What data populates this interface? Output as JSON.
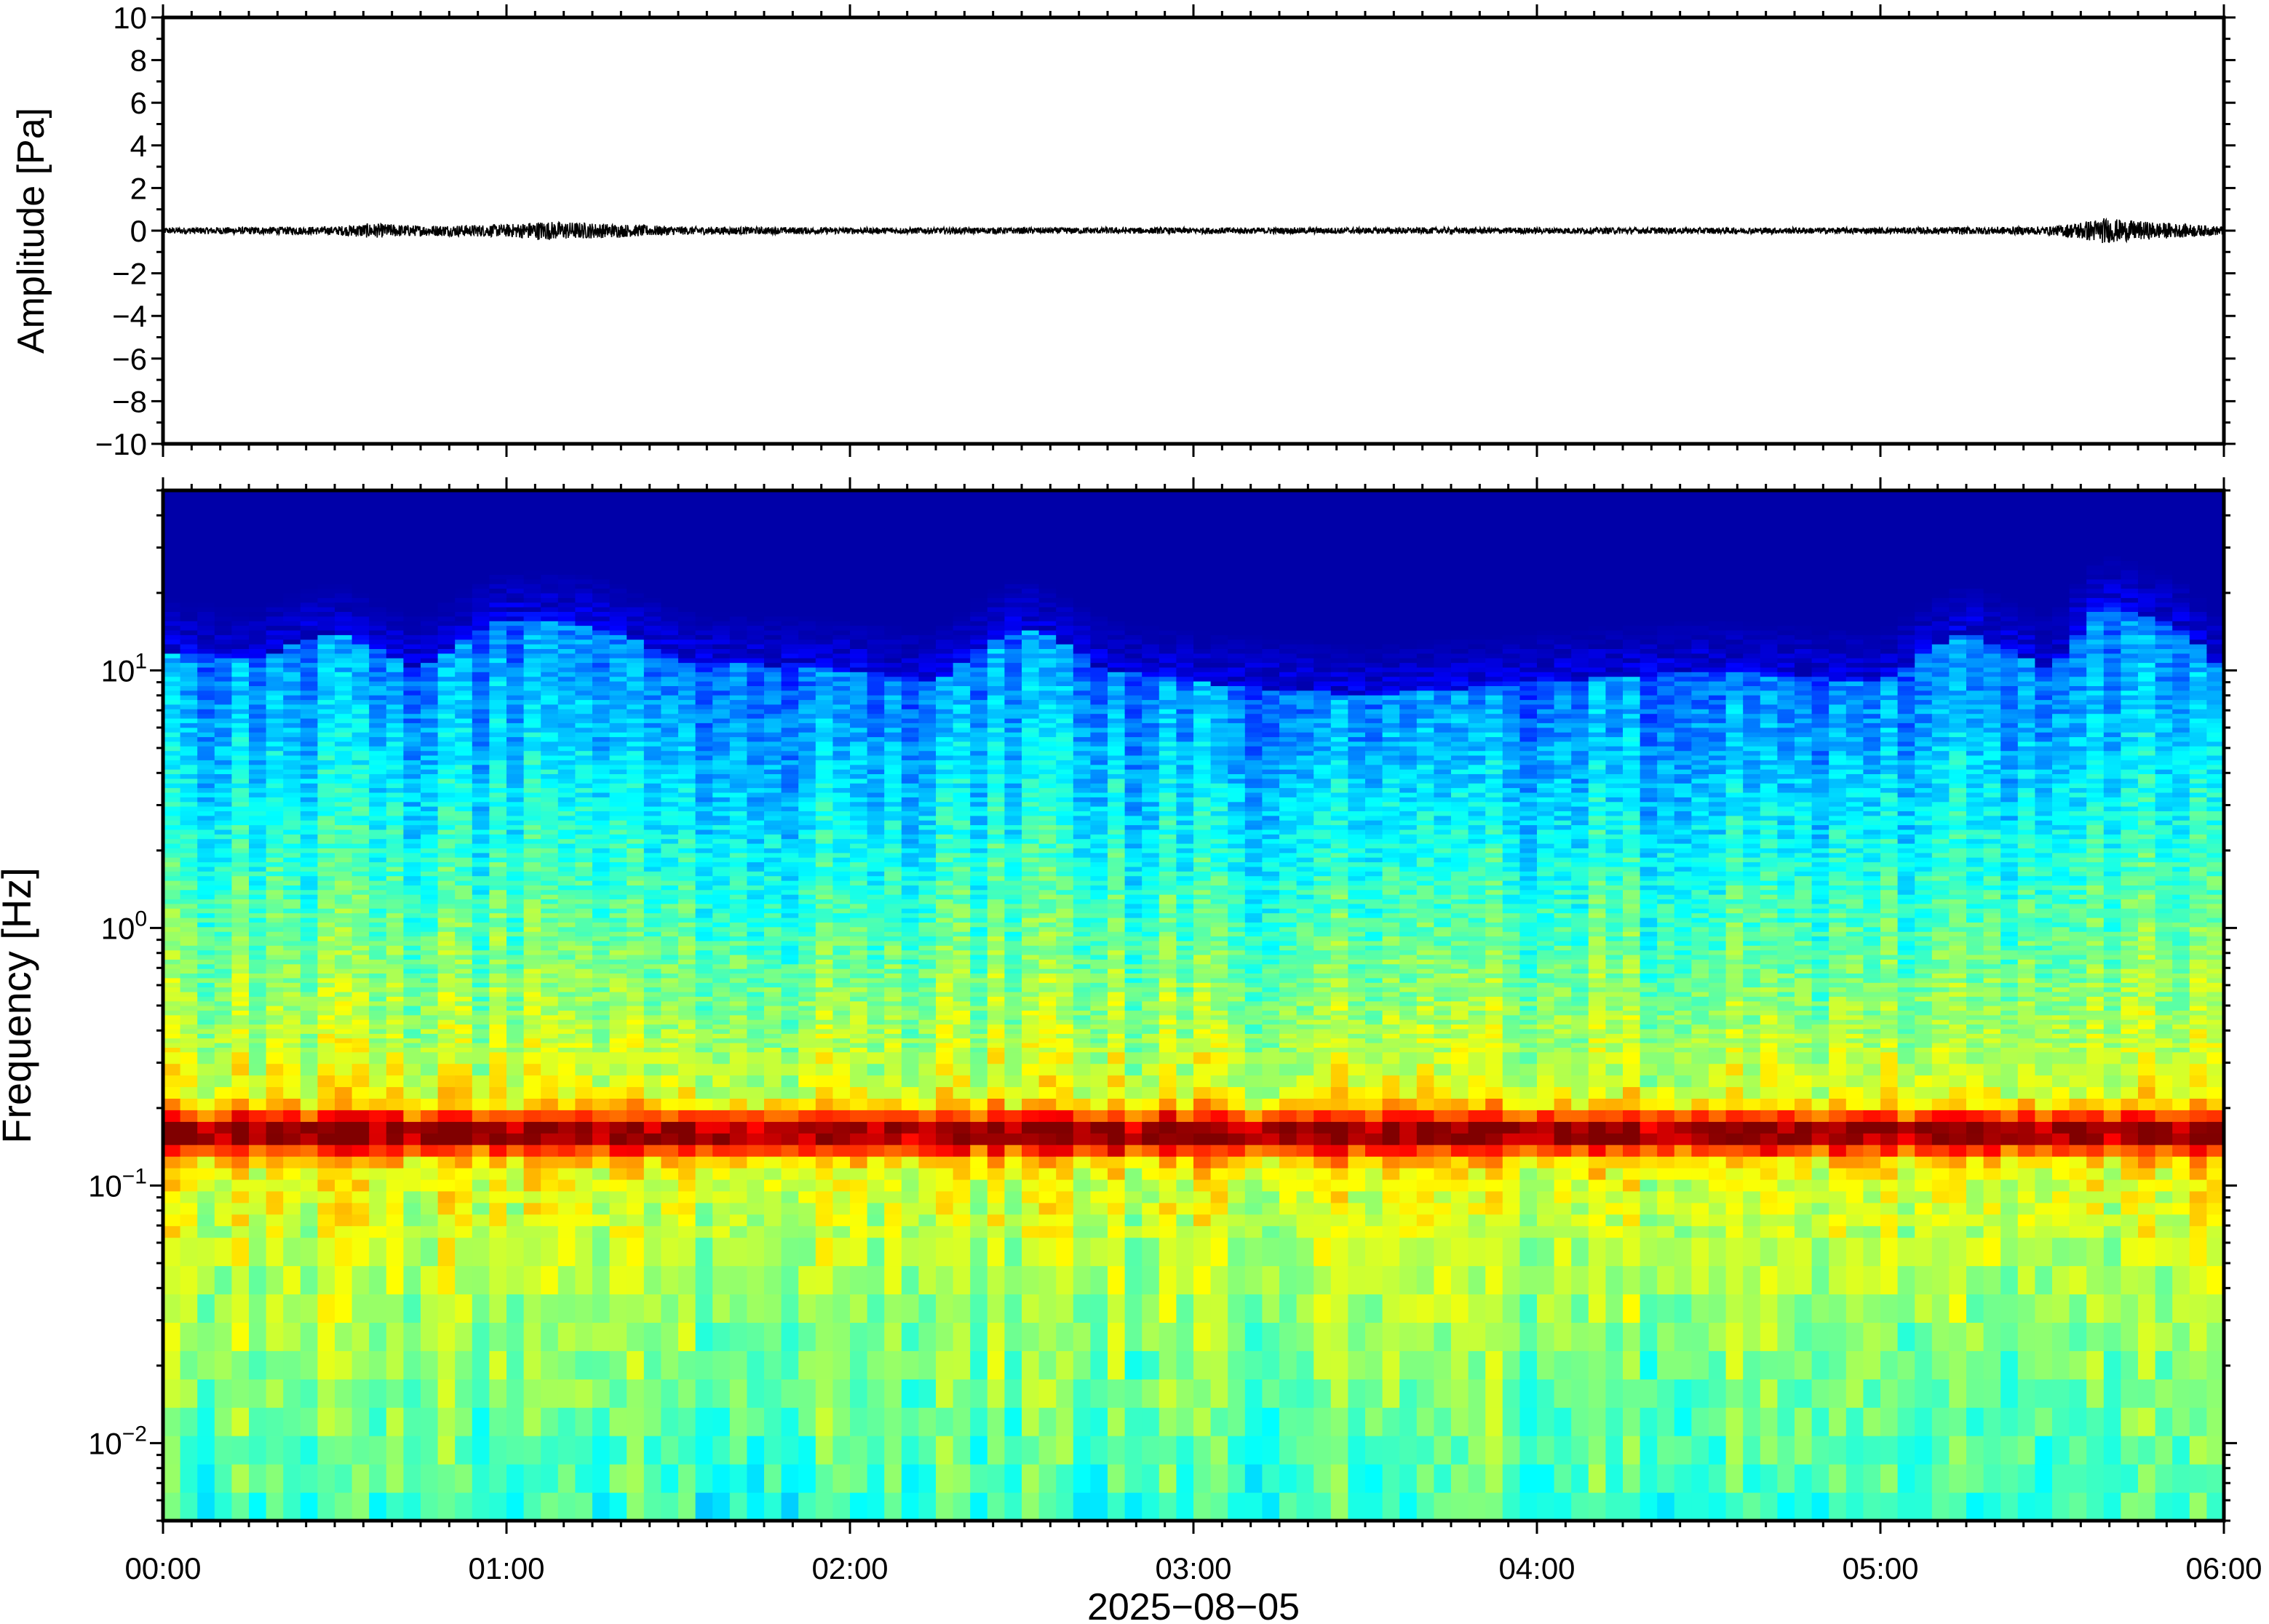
{
  "chart_data": [
    {
      "type": "line",
      "ylabel": "Amplitude [Pa]",
      "ylim": [
        -10,
        10
      ],
      "yticks": [
        "10",
        "8",
        "6",
        "4",
        "2",
        "0",
        "−2",
        "−4",
        "−6",
        "−8",
        "−10"
      ],
      "xlim": [
        "00:00",
        "06:00"
      ],
      "grid": false,
      "series": [
        {
          "color": "#000000",
          "x_hours": [
            0.0,
            0.5,
            0.6,
            0.75,
            1.0,
            1.1,
            1.2,
            1.5,
            2.0,
            2.5,
            3.0,
            3.5,
            4.0,
            4.5,
            5.0,
            5.5,
            5.65,
            5.75,
            6.0
          ],
          "envelope": [
            0.15,
            0.2,
            0.35,
            0.25,
            0.3,
            0.45,
            0.4,
            0.2,
            0.15,
            0.15,
            0.15,
            0.15,
            0.15,
            0.15,
            0.15,
            0.2,
            0.6,
            0.45,
            0.2
          ]
        }
      ]
    },
    {
      "type": "heatmap",
      "ylabel": "Frequency [Hz]",
      "yscale": "log",
      "ylim": [
        0.005,
        50
      ],
      "yticks": [
        {
          "base": "10",
          "exp": "1",
          "value": 10
        },
        {
          "base": "10",
          "exp": "0",
          "value": 1
        },
        {
          "base": "10",
          "exp": "−1",
          "value": 0.1
        },
        {
          "base": "10",
          "exp": "−2",
          "value": 0.01
        }
      ],
      "xlim": [
        "00:00",
        "06:00"
      ],
      "colormap": "jet",
      "colors": {
        "low": "#0a0a78",
        "peak": "#f08a3c"
      },
      "peak_frequency_hz": 0.16,
      "upper_cutoff_hz_by_hour": [
        [
          0.0,
          12
        ],
        [
          0.25,
          11
        ],
        [
          0.5,
          14
        ],
        [
          0.75,
          10
        ],
        [
          1.0,
          16
        ],
        [
          1.25,
          15
        ],
        [
          1.5,
          11
        ],
        [
          2.0,
          10
        ],
        [
          2.25,
          9
        ],
        [
          2.5,
          15
        ],
        [
          2.75,
          10
        ],
        [
          3.0,
          9
        ],
        [
          3.5,
          8
        ],
        [
          4.0,
          9
        ],
        [
          4.5,
          10
        ],
        [
          5.0,
          9
        ],
        [
          5.25,
          14
        ],
        [
          5.5,
          10
        ],
        [
          5.65,
          18
        ],
        [
          5.85,
          15
        ],
        [
          6.0,
          10
        ]
      ]
    }
  ],
  "xaxis": {
    "tick_labels": [
      "00:00",
      "01:00",
      "02:00",
      "03:00",
      "04:00",
      "05:00",
      "06:00"
    ],
    "label": "2025−08−05"
  }
}
